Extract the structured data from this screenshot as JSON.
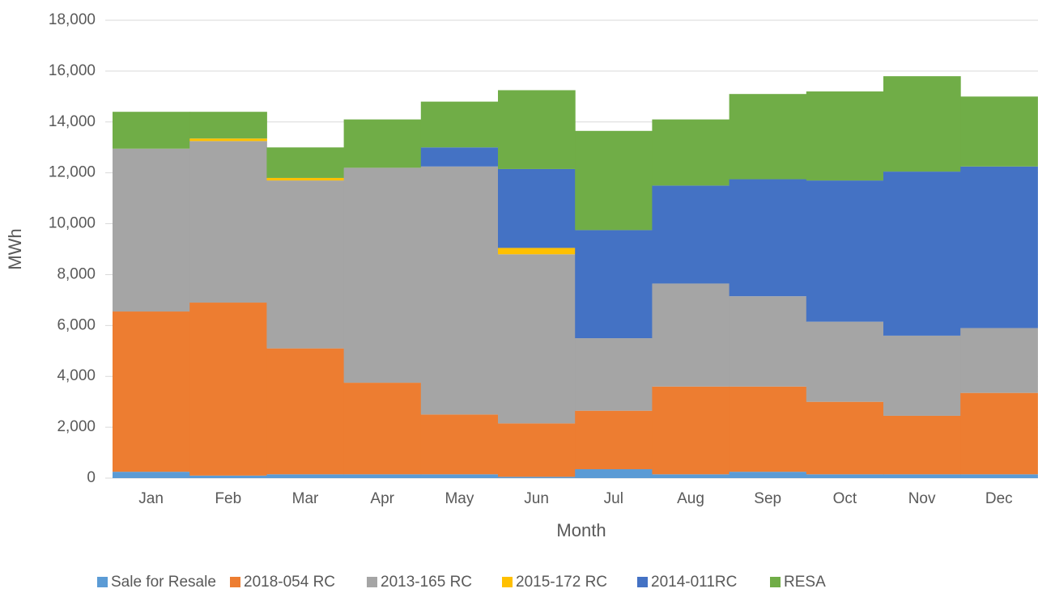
{
  "chart_data": {
    "type": "bar",
    "stacked": true,
    "xlabel": "Month",
    "ylabel": "MWh",
    "categories": [
      "Jan",
      "Feb",
      "Mar",
      "Apr",
      "May",
      "Jun",
      "Jul",
      "Aug",
      "Sep",
      "Oct",
      "Nov",
      "Dec"
    ],
    "series": [
      {
        "name": "Sale for Resale",
        "color": "#5b9bd5",
        "values": [
          250,
          100,
          150,
          150,
          150,
          50,
          350,
          150,
          250,
          150,
          150,
          150
        ]
      },
      {
        "name": "2018-054 RC",
        "color": "#ed7d31",
        "values": [
          6300,
          6800,
          4950,
          3600,
          2350,
          2100,
          2300,
          3450,
          3350,
          2850,
          2300,
          3200
        ]
      },
      {
        "name": "2013-165 RC",
        "color": "#a5a5a5",
        "values": [
          6400,
          6350,
          6600,
          8450,
          9750,
          6650,
          2850,
          4050,
          3550,
          3150,
          3150,
          2550
        ]
      },
      {
        "name": "2015-172 RC",
        "color": "#ffc000",
        "values": [
          0,
          100,
          100,
          0,
          0,
          250,
          0,
          0,
          0,
          0,
          0,
          0
        ]
      },
      {
        "name": "2014-011RC",
        "color": "#4472c4",
        "values": [
          0,
          0,
          0,
          0,
          750,
          3100,
          4250,
          3850,
          4600,
          5550,
          6450,
          6350
        ]
      },
      {
        "name": "RESA",
        "color": "#70ad47",
        "values": [
          1450,
          1050,
          1200,
          1900,
          1800,
          3100,
          3900,
          2600,
          3350,
          3500,
          3750,
          2750
        ]
      }
    ],
    "ylim": [
      0,
      18000
    ],
    "yticks": [
      0,
      {
        "value": 2000,
        "label": "2,000"
      },
      {
        "value": 4000,
        "label": "4,000"
      },
      {
        "value": 6000,
        "label": "6,000"
      },
      {
        "value": 8000,
        "label": "8,000"
      },
      {
        "value": 10000,
        "label": "10,000"
      },
      {
        "value": 12000,
        "label": "12,000"
      },
      {
        "value": 14000,
        "label": "14,000"
      },
      {
        "value": 16000,
        "label": "16,000"
      },
      {
        "value": 18000,
        "label": "18,000"
      }
    ],
    "grid": true,
    "legend": "bottom"
  }
}
